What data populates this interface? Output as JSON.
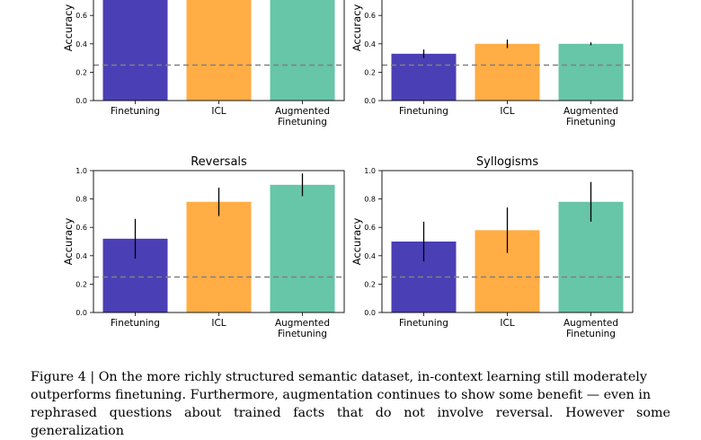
{
  "chart_data": [
    {
      "type": "bar",
      "title": "",
      "ylabel": "Accuracy",
      "ylim": [
        0,
        1.0
      ],
      "yticks": [
        "0.0",
        "0.2",
        "0.4",
        "0.6"
      ],
      "categories": [
        "Finetuning",
        "ICL",
        "Augmented\nFinetuning"
      ],
      "values": [
        1.0,
        1.0,
        1.0
      ],
      "error": [
        null,
        null,
        null
      ],
      "baseline": 0.25,
      "colors": [
        "#4a3fb5",
        "#ffad44",
        "#67c5a8"
      ]
    },
    {
      "type": "bar",
      "title": "",
      "ylabel": "Accuracy",
      "ylim": [
        0,
        1.0
      ],
      "yticks": [
        "0.0",
        "0.2",
        "0.4",
        "0.6"
      ],
      "categories": [
        "Finetuning",
        "ICL",
        "Augmented\nFinetuning"
      ],
      "values": [
        0.33,
        0.4,
        0.4
      ],
      "error": [
        0.03,
        0.03,
        0.01
      ],
      "baseline": 0.25,
      "colors": [
        "#4a3fb5",
        "#ffad44",
        "#67c5a8"
      ]
    },
    {
      "type": "bar",
      "title": "Reversals",
      "ylabel": "Accuracy",
      "ylim": [
        0,
        1.0
      ],
      "yticks": [
        "0.0",
        "0.2",
        "0.4",
        "0.6",
        "0.8",
        "1.0"
      ],
      "categories": [
        "Finetuning",
        "ICL",
        "Augmented\nFinetuning"
      ],
      "values": [
        0.52,
        0.78,
        0.9
      ],
      "error": [
        0.14,
        0.1,
        0.08
      ],
      "baseline": 0.25,
      "colors": [
        "#4a3fb5",
        "#ffad44",
        "#67c5a8"
      ]
    },
    {
      "type": "bar",
      "title": "Syllogisms",
      "ylabel": "Accuracy",
      "ylim": [
        0,
        1.0
      ],
      "yticks": [
        "0.0",
        "0.2",
        "0.4",
        "0.6",
        "0.8",
        "1.0"
      ],
      "categories": [
        "Finetuning",
        "ICL",
        "Augmented\nFinetuning"
      ],
      "values": [
        0.5,
        0.58,
        0.78
      ],
      "error": [
        0.14,
        0.16,
        0.14
      ],
      "baseline": 0.25,
      "colors": [
        "#4a3fb5",
        "#ffad44",
        "#67c5a8"
      ]
    }
  ],
  "caption": {
    "line1": "Figure 4 | On the more richly structured semantic dataset, in-context learning still moderately",
    "line2": "outperforms finetuning.  Furthermore, augmentation continues to show some benefit — even in",
    "line3": "rephrased questions about trained facts that do not involve reversal. However some generalization"
  }
}
